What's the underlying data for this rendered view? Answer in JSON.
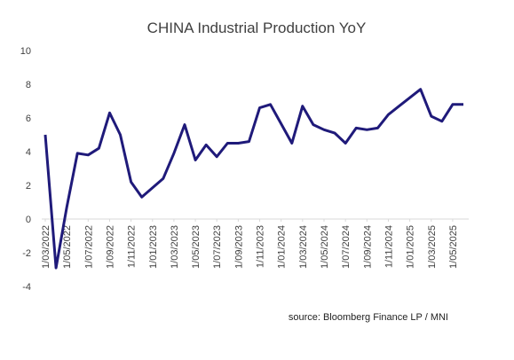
{
  "chart_data": {
    "type": "line",
    "title": "CHINA Industrial Production YoY",
    "xlabel": "",
    "ylabel": "",
    "ylim": [
      -4,
      10
    ],
    "yticks": [
      "10",
      "8",
      "6",
      "4",
      "2",
      "0",
      "-2",
      "-4"
    ],
    "grid": false,
    "legend": "none",
    "line_color": "#1f1a7a",
    "axis_color": "#d9d9d9",
    "x_tick_labels": [
      "1/03/2022",
      "1/05/2022",
      "1/07/2022",
      "1/09/2022",
      "1/11/2022",
      "1/01/2023",
      "1/03/2023",
      "1/05/2023",
      "1/07/2023",
      "1/09/2023",
      "1/11/2023",
      "1/01/2024",
      "1/03/2024",
      "1/05/2024",
      "1/07/2024",
      "1/09/2024",
      "1/11/2024",
      "1/01/2025",
      "1/03/2025",
      "1/05/2025"
    ],
    "series": [
      {
        "name": "",
        "x": [
          "2022-03",
          "2022-04",
          "2022-05",
          "2022-06",
          "2022-07",
          "2022-08",
          "2022-09",
          "2022-10",
          "2022-11",
          "2022-12",
          "2023-02",
          "2023-03",
          "2023-04",
          "2023-05",
          "2023-06",
          "2023-07",
          "2023-08",
          "2023-09",
          "2023-10",
          "2023-11",
          "2023-12",
          "2024-02",
          "2024-03",
          "2024-04",
          "2024-05",
          "2024-06",
          "2024-07",
          "2024-08",
          "2024-09",
          "2024-10",
          "2024-11",
          "2024-12",
          "2025-02",
          "2025-03",
          "2025-04",
          "2025-05",
          "2025-06"
        ],
        "values": [
          5.0,
          -2.9,
          0.7,
          3.9,
          3.8,
          4.2,
          6.3,
          5.0,
          2.2,
          1.3,
          2.4,
          3.9,
          5.6,
          3.5,
          4.4,
          3.7,
          4.5,
          4.5,
          4.6,
          6.6,
          6.8,
          4.5,
          6.7,
          5.6,
          5.3,
          5.1,
          4.5,
          5.4,
          5.3,
          5.4,
          6.2,
          6.7,
          7.7,
          6.1,
          5.8,
          6.8,
          6.8
        ]
      }
    ]
  },
  "source": "source: Bloomberg Finance LP / MNI"
}
